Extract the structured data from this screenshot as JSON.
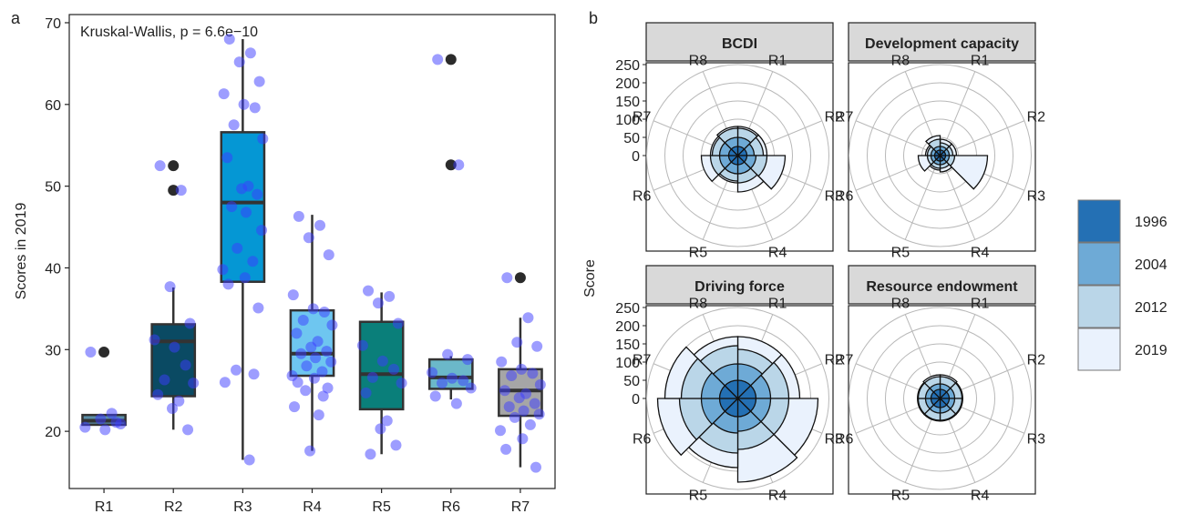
{
  "panel_a": {
    "tag": "a",
    "annotation": "Kruskal-Wallis, p = 6.6e−10",
    "chart_data": {
      "type": "box",
      "title": "",
      "xlabel": "",
      "ylabel": "Scores in 2019",
      "ylim": [
        13,
        71
      ],
      "yticks": [
        20,
        30,
        40,
        50,
        60,
        70
      ],
      "categories": [
        "R1",
        "R2",
        "R3",
        "R4",
        "R5",
        "R6",
        "R7"
      ],
      "colors": [
        "#5b8fa8",
        "#0a4a63",
        "#0597d4",
        "#6ec6f0",
        "#0a7f7a",
        "#6bb8c9",
        "#a6a6a6"
      ],
      "boxes": [
        {
          "q1": 20.8,
          "median": 21.3,
          "q3": 22.0,
          "whisker_low": 20.8,
          "whisker_high": 22.0,
          "outliers": [
            29.7
          ]
        },
        {
          "q1": 24.3,
          "median": 31.0,
          "q3": 33.1,
          "whisker_low": 20.2,
          "whisker_high": 37.6,
          "outliers": [
            52.5,
            49.5
          ]
        },
        {
          "q1": 38.3,
          "median": 48.0,
          "q3": 56.6,
          "whisker_low": 16.5,
          "whisker_high": 68.0,
          "outliers": []
        },
        {
          "q1": 26.8,
          "median": 29.5,
          "q3": 34.8,
          "whisker_low": 17.6,
          "whisker_high": 46.5,
          "outliers": []
        },
        {
          "q1": 22.7,
          "median": 27.0,
          "q3": 33.4,
          "whisker_low": 17.2,
          "whisker_high": 37.0,
          "outliers": []
        },
        {
          "q1": 25.2,
          "median": 26.6,
          "q3": 28.8,
          "whisker_low": 23.9,
          "whisker_high": 29.2,
          "outliers": [
            65.5,
            52.6
          ]
        },
        {
          "q1": 21.9,
          "median": 25.0,
          "q3": 27.6,
          "whisker_low": 15.6,
          "whisker_high": 33.9,
          "outliers": [
            38.8
          ]
        }
      ],
      "points": [
        [
          29.7,
          22.2,
          21.5,
          20.9,
          20.5,
          20.2,
          21.1
        ],
        [
          52.5,
          49.5,
          37.7,
          33.2,
          31.2,
          30.3,
          28.1,
          26.3,
          25.9,
          24.5,
          23.7,
          22.8,
          20.2
        ],
        [
          68.0,
          66.3,
          65.2,
          62.8,
          61.3,
          60.0,
          59.6,
          57.5,
          55.8,
          53.5,
          50.0,
          49.7,
          49.0,
          47.5,
          46.8,
          44.6,
          42.4,
          40.8,
          39.8,
          38.8,
          38.0,
          35.1,
          27.5,
          27.0,
          26.0,
          16.5
        ],
        [
          46.3,
          45.2,
          43.7,
          41.6,
          36.7,
          35.0,
          34.6,
          33.6,
          33.0,
          32.0,
          31.0,
          30.3,
          29.8,
          29.5,
          29.0,
          28.5,
          28.0,
          27.3,
          26.8,
          26.5,
          26.0,
          25.3,
          25.0,
          24.3,
          23.0,
          22.0,
          17.6
        ],
        [
          37.2,
          36.5,
          35.7,
          33.2,
          30.5,
          28.6,
          27.6,
          26.6,
          25.9,
          24.7,
          21.3,
          20.3,
          18.3,
          17.2
        ],
        [
          65.5,
          52.6,
          29.4,
          28.8,
          27.2,
          26.5,
          26.2,
          25.9,
          25.3,
          24.3,
          23.4
        ],
        [
          38.8,
          33.9,
          30.9,
          30.4,
          28.5,
          27.6,
          27.1,
          26.8,
          25.7,
          25.0,
          24.6,
          24.1,
          23.4,
          23.0,
          22.5,
          22.1,
          21.7,
          20.8,
          20.1,
          19.1,
          17.8,
          15.6
        ]
      ]
    }
  },
  "panel_b": {
    "tag": "b",
    "y_axis_label": "Score",
    "chart_data": {
      "type": "polar_bar",
      "title": "",
      "ylabel": "Score",
      "rlim": [
        0,
        250
      ],
      "rticks": [
        0,
        50,
        100,
        150,
        200,
        250
      ],
      "categories": [
        "R1",
        "R2",
        "R3",
        "R4",
        "R5",
        "R6",
        "R7",
        "R8"
      ],
      "series_names": [
        "1996",
        "2004",
        "2012",
        "2019"
      ],
      "series_colors": [
        "#2470b4",
        "#6eaad6",
        "#bad6e8",
        "#eaf2fd"
      ],
      "facets": [
        {
          "title": "BCDI",
          "values": {
            "1996": [
              25,
              25,
              25,
              25,
              25,
              25,
              25,
              25
            ],
            "2004": [
              50,
              45,
              50,
              50,
              50,
              50,
              50,
              50
            ],
            "2012": [
              75,
              70,
              80,
              75,
              70,
              75,
              70,
              75
            ],
            "2019": [
              80,
              80,
              130,
              100,
              75,
              100,
              75,
              80
            ]
          }
        },
        {
          "title": "Development capacity",
          "values": {
            "1996": [
              15,
              15,
              15,
              15,
              15,
              15,
              15,
              15
            ],
            "2004": [
              25,
              25,
              25,
              25,
              25,
              25,
              25,
              25
            ],
            "2012": [
              35,
              35,
              40,
              35,
              35,
              35,
              35,
              45
            ],
            "2019": [
              45,
              45,
              130,
              45,
              40,
              60,
              40,
              55
            ]
          }
        },
        {
          "title": "Driving force",
          "values": {
            "1996": [
              50,
              50,
              50,
              50,
              50,
              50,
              50,
              50
            ],
            "2004": [
              95,
              90,
              90,
              90,
              95,
              100,
              100,
              95
            ],
            "2012": [
              135,
              140,
              140,
              140,
              150,
              160,
              155,
              145
            ],
            "2019": [
              170,
              170,
              220,
              230,
              190,
              220,
              200,
              170
            ]
          }
        },
        {
          "title": "Resource endowment",
          "values": {
            "1996": [
              25,
              25,
              25,
              25,
              25,
              25,
              25,
              25
            ],
            "2004": [
              40,
              40,
              40,
              40,
              40,
              40,
              40,
              40
            ],
            "2012": [
              60,
              60,
              60,
              60,
              60,
              60,
              60,
              60
            ],
            "2019": [
              65,
              62,
              62,
              62,
              62,
              62,
              62,
              65
            ]
          }
        }
      ]
    }
  }
}
